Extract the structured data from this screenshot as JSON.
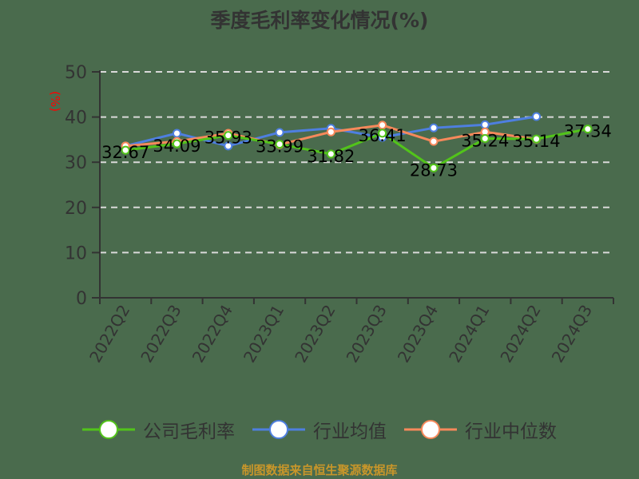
{
  "title": "季度毛利率变化情况(%)",
  "y_unit_label": "(%)",
  "source_note": "制图数据来自恒生聚源数据库",
  "colors": {
    "background": "#4a6b4d",
    "company": "#52c41a",
    "industry_avg": "#4e7fe0",
    "industry_median": "#f7895b",
    "grid": "#d9d9d9",
    "axis": "#333333",
    "unit_label": "#ff0000",
    "source": "#c8962a"
  },
  "legend": [
    {
      "label": "公司毛利率",
      "color": "#52c41a"
    },
    {
      "label": "行业均值",
      "color": "#4e7fe0"
    },
    {
      "label": "行业中位数",
      "color": "#f7895b"
    }
  ],
  "chart_data": {
    "type": "line",
    "title": "季度毛利率变化情况(%)",
    "xlabel": "",
    "ylabel": "(%)",
    "ylim": [
      0,
      50
    ],
    "yticks": [
      0,
      10,
      20,
      30,
      40,
      50
    ],
    "grid": true,
    "legend_position": "bottom",
    "categories": [
      "2022Q2",
      "2022Q3",
      "2022Q4",
      "2023Q1",
      "2023Q2",
      "2023Q3",
      "2023Q4",
      "2024Q1",
      "2024Q2",
      "2024Q3"
    ],
    "series": [
      {
        "name": "公司毛利率",
        "values": [
          32.67,
          34.09,
          35.93,
          33.99,
          31.82,
          36.41,
          28.73,
          35.24,
          35.14,
          37.34
        ],
        "labels_shown": true
      },
      {
        "name": "行业均值",
        "values": [
          33.6,
          36.4,
          33.6,
          36.6,
          37.5,
          35.5,
          37.6,
          38.3,
          40.1,
          null
        ],
        "labels_shown": false
      },
      {
        "name": "行业中位数",
        "values": [
          33.6,
          34.6,
          36.4,
          33.9,
          36.7,
          38.2,
          34.6,
          36.7,
          35.1,
          null
        ],
        "labels_shown": false
      }
    ]
  }
}
